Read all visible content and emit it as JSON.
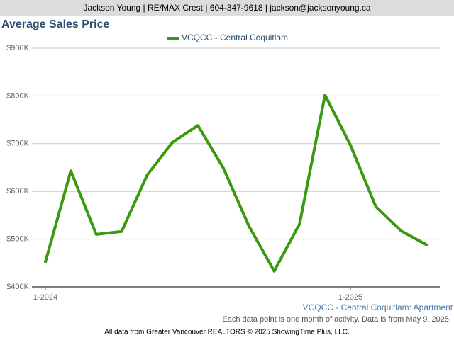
{
  "chart_data": {
    "type": "line",
    "header": "Jackson Young | RE/MAX Crest | 604-347-9618 | jackson@jacksonyoung.ca",
    "title": "Average Sales Price",
    "caption": "VCQCC - Central Coquitlam: Apartment",
    "note": "Each data point is one month of activity. Data is from May 9, 2025.",
    "footer": "All data from Greater Vancouver REALTORS © 2025 ShowingTime Plus, LLC.",
    "categories": [
      "1-2024",
      null,
      null,
      null,
      null,
      null,
      null,
      null,
      null,
      null,
      null,
      null,
      "1-2025",
      null,
      null,
      null
    ],
    "series": [
      {
        "name": "VCQCC - Central Coquitlam",
        "color": "#3a9a0f",
        "values": [
          452000,
          643000,
          510000,
          516000,
          634000,
          703000,
          738000,
          649000,
          528000,
          433000,
          532000,
          802000,
          697000,
          568000,
          517000,
          488000
        ]
      }
    ],
    "ylim": [
      400000,
      900000
    ],
    "yticks": [
      {
        "value": 400000,
        "label": "$400K"
      },
      {
        "value": 500000,
        "label": "$500K"
      },
      {
        "value": 600000,
        "label": "$600K"
      },
      {
        "value": 700000,
        "label": "$700K"
      },
      {
        "value": 800000,
        "label": "$800K"
      },
      {
        "value": 900000,
        "label": "$900K"
      }
    ],
    "grid": true,
    "legend": "top"
  }
}
